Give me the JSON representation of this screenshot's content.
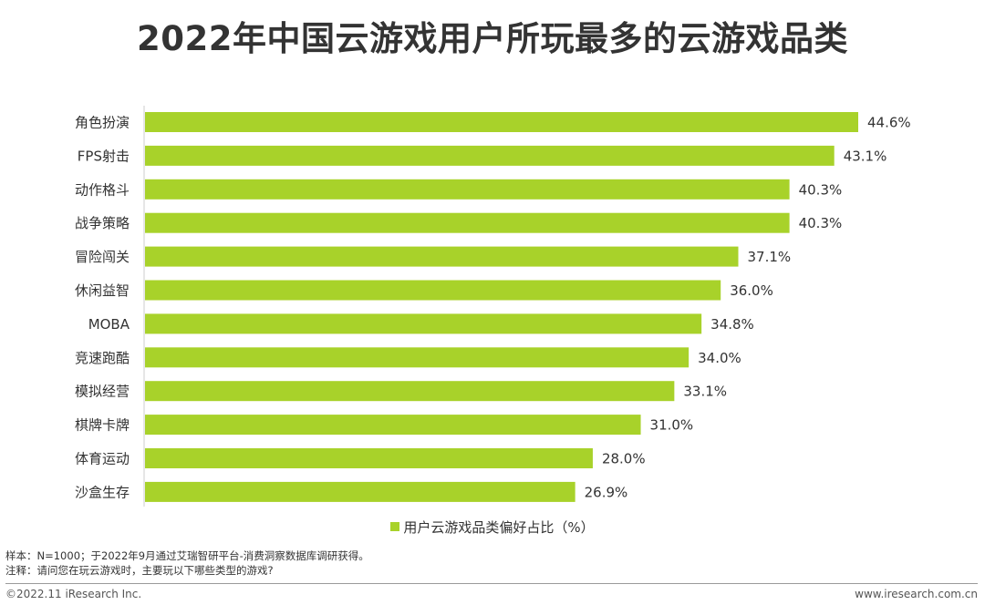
{
  "chart_data": {
    "type": "bar",
    "orientation": "horizontal",
    "title": "2022年中国云游戏用户所玩最多的云游戏品类",
    "categories": [
      "角色扮演",
      "FPS射击",
      "动作格斗",
      "战争策略",
      "冒险闯关",
      "休闲益智",
      "MOBA",
      "竞速跑酷",
      "模拟经营",
      "棋牌卡牌",
      "体育运动",
      "沙盒生存"
    ],
    "series": [
      {
        "name": "用户云游戏品类偏好占比（%）",
        "values": [
          44.6,
          43.1,
          40.3,
          40.3,
          37.1,
          36.0,
          34.8,
          34.0,
          33.1,
          31.0,
          28.0,
          26.9
        ],
        "labels": [
          "44.6%",
          "43.1%",
          "40.3%",
          "40.3%",
          "37.1%",
          "36.0%",
          "34.8%",
          "34.0%",
          "33.1%",
          "31.0%",
          "28.0%",
          "26.9%"
        ]
      }
    ],
    "xlim": [
      0,
      44.6
    ],
    "grid": false,
    "legend_position": "bottom",
    "bar_color": "#a8d22a"
  },
  "notes": {
    "sample": "样本：N=1000；于2022年9月通过艾瑞智研平台-消费洞察数据库调研获得。",
    "remark": "注释：请问您在玩云游戏时，主要玩以下哪些类型的游戏?"
  },
  "footer": {
    "copyright": "©2022.11 iResearch Inc.",
    "website": "www.iresearch.com.cn"
  }
}
